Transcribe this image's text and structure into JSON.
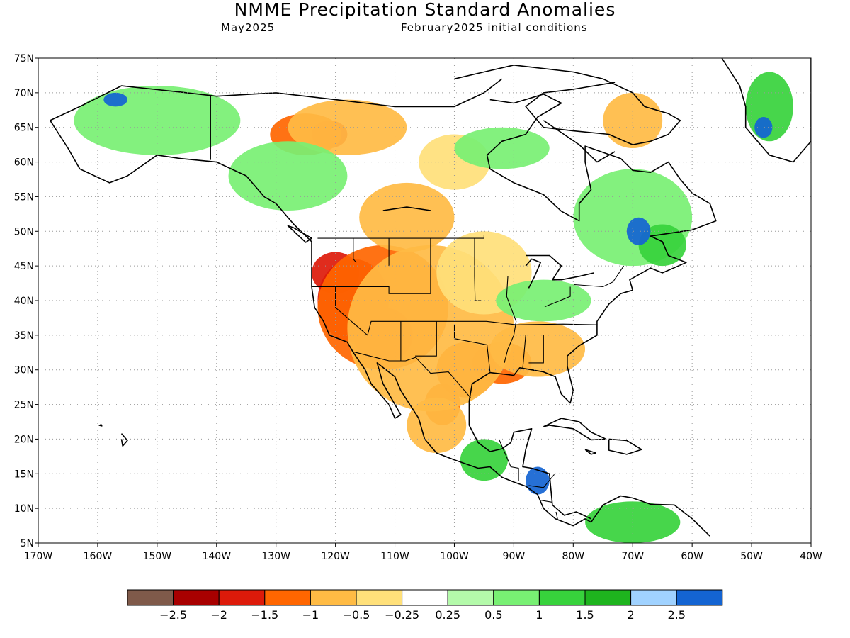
{
  "header": {
    "title": "NMME Precipitation Standard Anomalies",
    "target_month": "May2025",
    "initial_conditions": "February2025 initial conditions"
  },
  "map": {
    "lon_range": [
      -170,
      -40
    ],
    "lat_range": [
      5,
      75
    ],
    "lat_labels": [
      "75N",
      "70N",
      "65N",
      "60N",
      "55N",
      "50N",
      "45N",
      "40N",
      "35N",
      "30N",
      "25N",
      "20N",
      "15N",
      "10N",
      "5N"
    ],
    "lat_values": [
      75,
      70,
      65,
      60,
      55,
      50,
      45,
      40,
      35,
      30,
      25,
      20,
      15,
      10,
      5
    ],
    "lon_labels": [
      "170W",
      "160W",
      "150W",
      "140W",
      "130W",
      "120W",
      "110W",
      "100W",
      "90W",
      "80W",
      "70W",
      "60W",
      "50W",
      "40W"
    ],
    "lon_values": [
      -170,
      -160,
      -150,
      -140,
      -130,
      -120,
      -110,
      -100,
      -90,
      -80,
      -70,
      -60,
      -50,
      -40
    ]
  },
  "colorbar": {
    "colors": [
      "#7f5a4a",
      "#a80000",
      "#dd1a0a",
      "#ff6600",
      "#ffbb44",
      "#ffe07a",
      "#ffffff",
      "#b4faaa",
      "#78f073",
      "#37d23c",
      "#1eb41e",
      "#a0d2ff",
      "#1464d2"
    ],
    "labels": [
      "−2.5",
      "−2",
      "−1.5",
      "−1",
      "−0.5",
      "−0.25",
      "0.25",
      "0.5",
      "1",
      "1.5",
      "2",
      "2.5"
    ]
  },
  "regions": [
    {
      "type": "dry-strong",
      "lon": -117,
      "lat": 40,
      "rx": 6,
      "ry": 6
    },
    {
      "type": "dry-strong",
      "lon": -112,
      "lat": 35,
      "rx": 5,
      "ry": 4
    },
    {
      "type": "dry-strong",
      "lon": -120,
      "lat": 44,
      "rx": 4,
      "ry": 3
    },
    {
      "type": "dry-strong",
      "lon": -121,
      "lat": 64,
      "rx": 3,
      "ry": 2
    },
    {
      "type": "dry-moderate",
      "lon": -112,
      "lat": 39,
      "rx": 11,
      "ry": 9
    },
    {
      "type": "dry-moderate",
      "lon": -98,
      "lat": 30,
      "rx": 5,
      "ry": 4
    },
    {
      "type": "dry-moderate",
      "lon": -92,
      "lat": 31,
      "rx": 5,
      "ry": 3
    },
    {
      "type": "dry-moderate",
      "lon": -102,
      "lat": 25,
      "rx": 3,
      "ry": 3
    },
    {
      "type": "dry-moderate",
      "lon": -125,
      "lat": 64,
      "rx": 6,
      "ry": 3
    },
    {
      "type": "dry-light",
      "lon": -104,
      "lat": 36,
      "rx": 14,
      "ry": 12
    },
    {
      "type": "dry-light",
      "lon": -86,
      "lat": 33,
      "rx": 8,
      "ry": 4
    },
    {
      "type": "dry-light",
      "lon": -103,
      "lat": 22,
      "rx": 5,
      "ry": 4
    },
    {
      "type": "dry-light",
      "lon": -108,
      "lat": 52,
      "rx": 8,
      "ry": 5
    },
    {
      "type": "dry-light",
      "lon": -118,
      "lat": 65,
      "rx": 10,
      "ry": 4
    },
    {
      "type": "dry-light",
      "lon": -70,
      "lat": 66,
      "rx": 5,
      "ry": 4
    },
    {
      "type": "dry-faint",
      "lon": -95,
      "lat": 44,
      "rx": 8,
      "ry": 6
    },
    {
      "type": "dry-faint",
      "lon": -100,
      "lat": 60,
      "rx": 6,
      "ry": 4
    },
    {
      "type": "wet-light",
      "lon": -150,
      "lat": 66,
      "rx": 14,
      "ry": 5
    },
    {
      "type": "wet-light",
      "lon": -128,
      "lat": 58,
      "rx": 10,
      "ry": 5
    },
    {
      "type": "wet-light",
      "lon": -70,
      "lat": 52,
      "rx": 10,
      "ry": 7
    },
    {
      "type": "wet-light",
      "lon": -85,
      "lat": 40,
      "rx": 8,
      "ry": 3
    },
    {
      "type": "wet-light",
      "lon": -92,
      "lat": 62,
      "rx": 8,
      "ry": 3
    },
    {
      "type": "wet-moderate",
      "lon": -65,
      "lat": 48,
      "rx": 4,
      "ry": 3
    },
    {
      "type": "wet-moderate",
      "lon": -95,
      "lat": 17,
      "rx": 4,
      "ry": 3
    },
    {
      "type": "wet-moderate",
      "lon": -70,
      "lat": 8,
      "rx": 8,
      "ry": 3
    },
    {
      "type": "wet-moderate",
      "lon": -47,
      "lat": 68,
      "rx": 4,
      "ry": 5
    },
    {
      "type": "wet-strong",
      "lon": -69,
      "lat": 50,
      "rx": 2,
      "ry": 2
    },
    {
      "type": "wet-strong",
      "lon": -86,
      "lat": 14,
      "rx": 2,
      "ry": 2
    },
    {
      "type": "wet-strong",
      "lon": -157,
      "lat": 69,
      "rx": 2,
      "ry": 1
    },
    {
      "type": "wet-strong",
      "lon": -48,
      "lat": 65,
      "rx": 1.5,
      "ry": 1.5
    }
  ]
}
